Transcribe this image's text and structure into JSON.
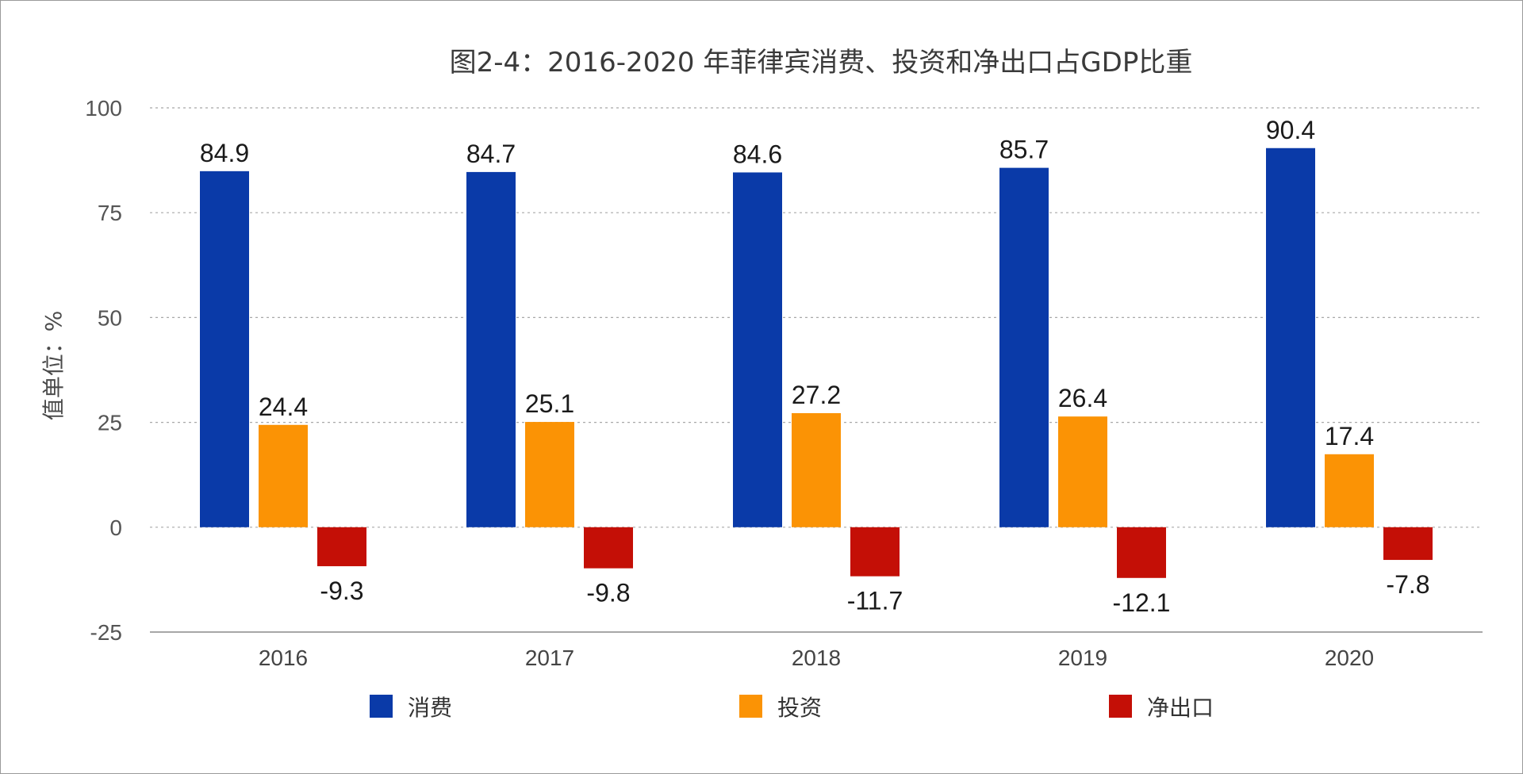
{
  "chart_data": {
    "type": "bar",
    "title": "图2-4：2016-2020 年菲律宾消费、投资和净出口占GDP比重",
    "xlabel": "",
    "ylabel": "值单位：%",
    "ylim": [
      -25,
      100
    ],
    "yticks": [
      100,
      75,
      50,
      25,
      0,
      -25
    ],
    "grid": true,
    "legend_position": "bottom",
    "categories": [
      "2016",
      "2017",
      "2018",
      "2019",
      "2020"
    ],
    "series": [
      {
        "name": "消费",
        "color": "#0a3aa8",
        "values": [
          84.9,
          84.7,
          84.6,
          85.7,
          90.4
        ]
      },
      {
        "name": "投资",
        "color": "#fb9305",
        "values": [
          24.4,
          25.1,
          27.2,
          26.4,
          17.4
        ]
      },
      {
        "name": "净出口",
        "color": "#c40f06",
        "values": [
          -9.3,
          -9.8,
          -11.7,
          -12.1,
          -7.8
        ]
      }
    ]
  }
}
